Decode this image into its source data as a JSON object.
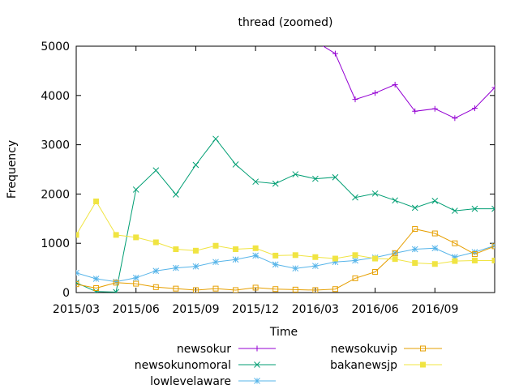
{
  "chart_data": {
    "type": "line",
    "title": "thread (zoomed)",
    "xlabel": "Time",
    "ylabel": "Frequency",
    "x": [
      "2015-03",
      "2015-04",
      "2015-05",
      "2015-06",
      "2015-07",
      "2015-08",
      "2015-09",
      "2015-10",
      "2015-11",
      "2015-12",
      "2016-01",
      "2016-02",
      "2016-03",
      "2016-04",
      "2016-05",
      "2016-06",
      "2016-07",
      "2016-08",
      "2016-09",
      "2016-10",
      "2016-11",
      "2016-12"
    ],
    "xlim": [
      "2015-03",
      "2016-12"
    ],
    "ylim": [
      0,
      5000
    ],
    "x_ticks": [
      {
        "value": "2015-03",
        "label": "2015/03"
      },
      {
        "value": "2015-06",
        "label": "2015/06"
      },
      {
        "value": "2015-09",
        "label": "2015/09"
      },
      {
        "value": "2015-12",
        "label": "2015/12"
      },
      {
        "value": "2016-03",
        "label": "2016/03"
      },
      {
        "value": "2016-06",
        "label": "2016/06"
      },
      {
        "value": "2016-09",
        "label": "2016/09"
      }
    ],
    "y_ticks": [
      {
        "value": 0,
        "label": "0"
      },
      {
        "value": 1000,
        "label": "1000"
      },
      {
        "value": 2000,
        "label": "2000"
      },
      {
        "value": 3000,
        "label": "3000"
      },
      {
        "value": 4000,
        "label": "4000"
      },
      {
        "value": 5000,
        "label": "5000"
      }
    ],
    "grid": false,
    "legend_position": "bottom",
    "series": [
      {
        "name": "newsokur",
        "color": "#9400d3",
        "marker": "plus",
        "values": [
          null,
          null,
          null,
          null,
          null,
          null,
          null,
          null,
          null,
          null,
          null,
          5400,
          5100,
          4850,
          3920,
          4050,
          4220,
          3680,
          3730,
          3540,
          3740,
          4160
        ]
      },
      {
        "name": "newsokunomoral",
        "color": "#009e73",
        "marker": "cross",
        "values": [
          200,
          20,
          10,
          2090,
          2480,
          1990,
          2590,
          3120,
          2600,
          2250,
          2210,
          2400,
          2310,
          2340,
          1930,
          2010,
          1870,
          1720,
          1860,
          1660,
          1700,
          1700
        ]
      },
      {
        "name": "lowlevelaware",
        "color": "#56b4e9",
        "marker": "star",
        "values": [
          400,
          280,
          220,
          300,
          440,
          500,
          530,
          620,
          670,
          750,
          570,
          490,
          540,
          620,
          650,
          710,
          800,
          880,
          900,
          720,
          820,
          950
        ]
      },
      {
        "name": "newsokuvip",
        "color": "#e69f00",
        "marker": "square-open",
        "values": [
          170,
          90,
          200,
          180,
          110,
          80,
          50,
          80,
          50,
          100,
          70,
          60,
          50,
          70,
          290,
          420,
          800,
          1290,
          1200,
          1000,
          780,
          940
        ]
      },
      {
        "name": "bakanewsjp",
        "color": "#f0e442",
        "marker": "square-filled",
        "values": [
          1170,
          1850,
          1170,
          1120,
          1020,
          880,
          850,
          950,
          880,
          900,
          750,
          760,
          720,
          690,
          760,
          690,
          680,
          600,
          580,
          640,
          650,
          650
        ]
      }
    ]
  }
}
